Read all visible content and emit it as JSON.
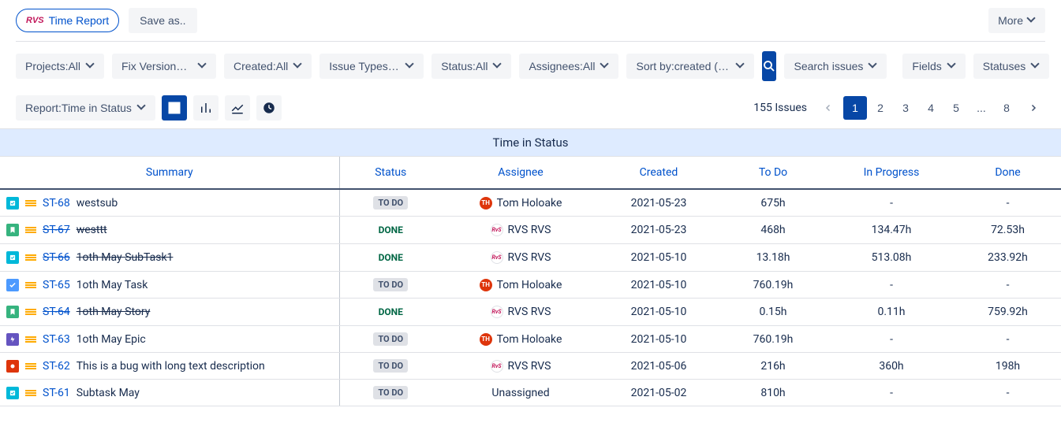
{
  "header": {
    "time_report_label": "Time Report",
    "logo_text": "RVS",
    "save_as_label": "Save as..",
    "more_label": "More"
  },
  "filters": {
    "projects": "Projects:All",
    "fix_version": "Fix Versions:All",
    "created": "Created:All",
    "issue_type": "Issue Types:All",
    "status": "Status:All",
    "assignee": "Assignees:All",
    "sort": "Sort by:created (DESC)",
    "search": "Search issues",
    "fields": "Fields",
    "statuses": "Statuses"
  },
  "report": {
    "selector": "Report:Time in Status",
    "issues_count": "155 Issues",
    "pages": [
      "1",
      "2",
      "3",
      "4",
      "5",
      "...",
      "8"
    ],
    "active_page": "1"
  },
  "table": {
    "title": "Time in Status",
    "columns": [
      "Summary",
      "Status",
      "Assignee",
      "Created",
      "To Do",
      "In Progress",
      "Done"
    ],
    "rows": [
      {
        "type": "subtask",
        "type_color": "#00b8d9",
        "key": "ST-68",
        "summary": "westsub",
        "strike": false,
        "status": "TO DO",
        "status_class": "todo",
        "assignee": "Tom Holoake",
        "avatar": "th",
        "created": "2021-05-23",
        "todo": "675h",
        "inprogress": "-",
        "done": "-"
      },
      {
        "type": "story",
        "type_color": "#36b37e",
        "key": "ST-67",
        "summary": "westtt",
        "strike": true,
        "status": "DONE",
        "status_class": "done",
        "assignee": "RVS RVS",
        "avatar": "rvs",
        "created": "2021-05-23",
        "todo": "468h",
        "inprogress": "134.47h",
        "done": "72.53h"
      },
      {
        "type": "subtask",
        "type_color": "#00b8d9",
        "key": "ST-66",
        "summary": "1oth May SubTask1",
        "strike": true,
        "status": "DONE",
        "status_class": "done",
        "assignee": "RVS RVS",
        "avatar": "rvs",
        "created": "2021-05-10",
        "todo": "13.18h",
        "inprogress": "513.08h",
        "done": "233.92h"
      },
      {
        "type": "task",
        "type_color": "#4c9aff",
        "key": "ST-65",
        "summary": "1oth May Task",
        "strike": false,
        "status": "TO DO",
        "status_class": "todo",
        "assignee": "Tom Holoake",
        "avatar": "th",
        "created": "2021-05-10",
        "todo": "760.19h",
        "inprogress": "-",
        "done": "-"
      },
      {
        "type": "story",
        "type_color": "#36b37e",
        "key": "ST-64",
        "summary": "1oth May Story",
        "strike": true,
        "status": "DONE",
        "status_class": "done",
        "assignee": "RVS RVS",
        "avatar": "rvs",
        "created": "2021-05-10",
        "todo": "0.15h",
        "inprogress": "0.11h",
        "done": "759.92h"
      },
      {
        "type": "epic",
        "type_color": "#6554c0",
        "key": "ST-63",
        "summary": "1oth May Epic",
        "strike": false,
        "status": "TO DO",
        "status_class": "todo",
        "assignee": "Tom Holoake",
        "avatar": "th",
        "created": "2021-05-10",
        "todo": "760.19h",
        "inprogress": "-",
        "done": "-"
      },
      {
        "type": "bug",
        "type_color": "#de350b",
        "key": "ST-62",
        "summary": "This is a bug with long text description",
        "strike": false,
        "status": "TO DO",
        "status_class": "todo",
        "assignee": "RVS RVS",
        "avatar": "rvs",
        "created": "2021-05-06",
        "todo": "216h",
        "inprogress": "360h",
        "done": "198h"
      },
      {
        "type": "subtask",
        "type_color": "#00b8d9",
        "key": "ST-61",
        "summary": "Subtask May",
        "strike": false,
        "status": "TO DO",
        "status_class": "todo",
        "assignee": "Unassigned",
        "avatar": "",
        "created": "2021-05-02",
        "todo": "810h",
        "inprogress": "-",
        "done": "-"
      }
    ]
  },
  "colors": {
    "primary": "#0747a6",
    "link": "#0052cc",
    "title_banner": "#deebff",
    "border": "#dfe1e6"
  }
}
